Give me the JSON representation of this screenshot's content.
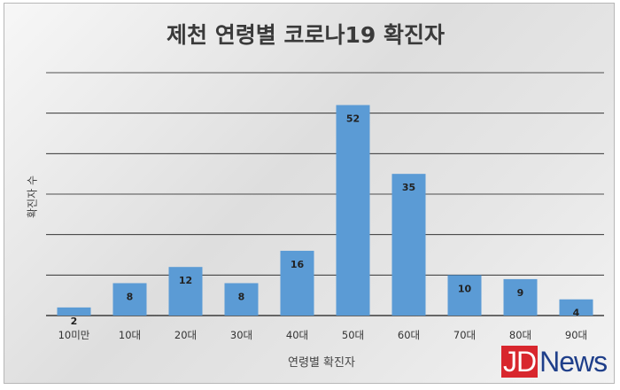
{
  "colors": {
    "bar": "#5b9bd5",
    "grid": "#1a1a1a",
    "text": "#333333"
  },
  "watermark": {
    "part1": "JD",
    "part2": "News"
  },
  "chart_data": {
    "type": "bar",
    "title": "제천 연령별 코로나19 확진자",
    "xlabel": "연령별 확진자",
    "ylabel": "확진자 수",
    "categories": [
      "10미만",
      "10대",
      "20대",
      "30대",
      "40대",
      "50대",
      "60대",
      "70대",
      "80대",
      "90대"
    ],
    "values": [
      2,
      8,
      12,
      8,
      16,
      52,
      35,
      10,
      9,
      4
    ],
    "ylim": [
      0,
      60
    ],
    "grid": true,
    "legend": "none"
  }
}
